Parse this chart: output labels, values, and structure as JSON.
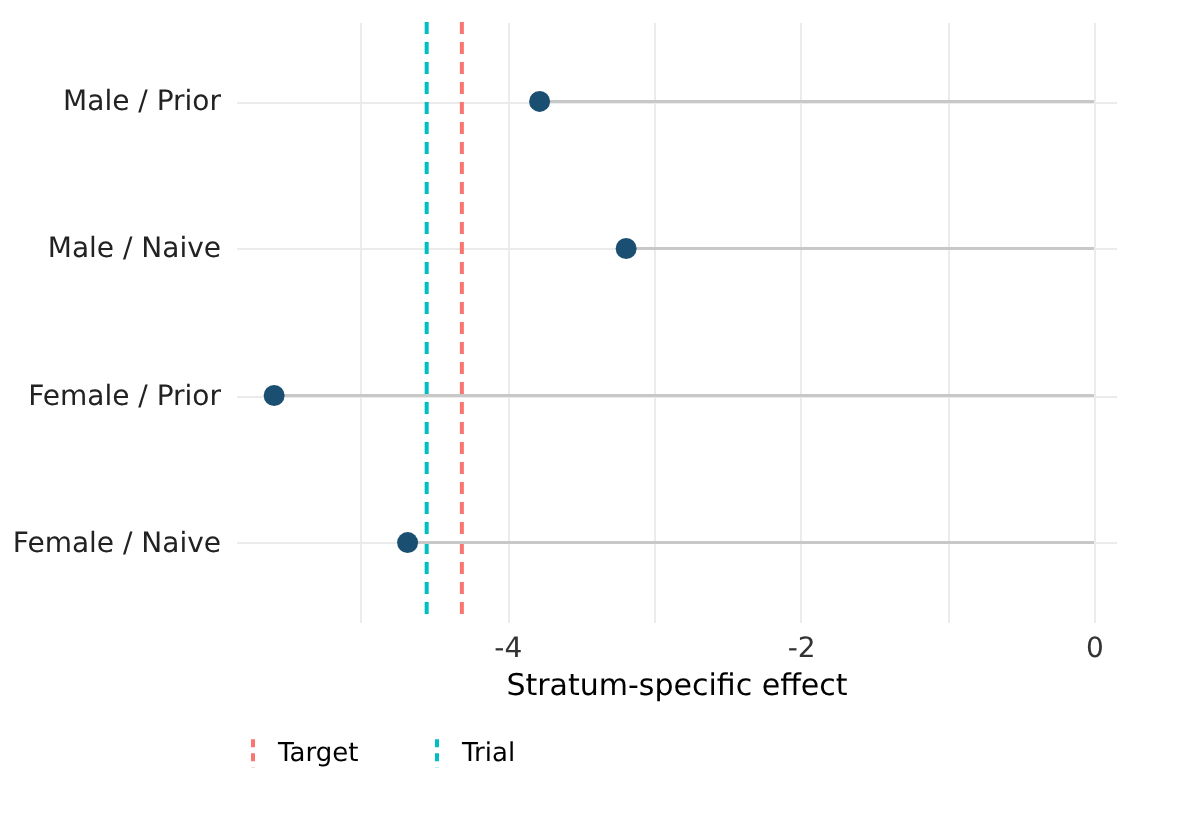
{
  "chart_data": {
    "type": "lollipop",
    "orientation": "horizontal",
    "xlabel": "Stratum-specific effect",
    "categories": [
      "Male / Prior",
      "Male / Naive",
      "Female / Prior",
      "Female / Naive"
    ],
    "series": [
      {
        "color": "#1b4f72",
        "values": [
          -3.78,
          -3.19,
          -5.59,
          -4.68
        ]
      }
    ],
    "ref_lines": [
      {
        "axis": "x",
        "value": -4.31,
        "label": "Target",
        "color": "#f8766d",
        "line_style": "dashed"
      },
      {
        "axis": "x",
        "value": -4.55,
        "label": "Trial",
        "color": "#00bfc4",
        "line_style": "dashed"
      }
    ],
    "xlim": [
      -5.85,
      0.15
    ],
    "xticks": [
      {
        "value": -5,
        "label": null
      },
      -4,
      {
        "value": -3,
        "label": null
      },
      -2,
      {
        "value": -1,
        "label": null
      },
      0
    ],
    "grid": true,
    "legend": "bottom",
    "marker": "circle"
  }
}
